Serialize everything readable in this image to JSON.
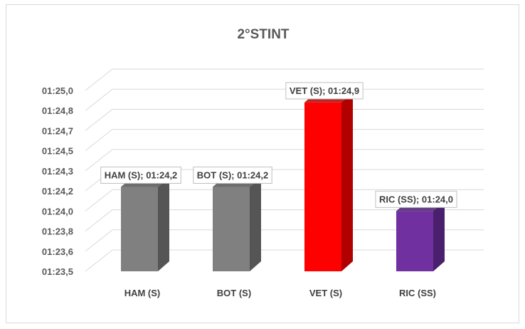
{
  "chart_data": {
    "type": "bar",
    "title": "2°STINT",
    "categories": [
      "HAM (S)",
      "BOT (S)",
      "VET (S)",
      "RIC (SS)"
    ],
    "values_seconds": [
      84.2,
      84.2,
      84.9,
      84.0
    ],
    "data_labels": [
      "HAM (S); 01:24,2",
      "BOT (S); 01:24,2",
      "VET (S); 01:24,9",
      "RIC (SS); 01:24,0"
    ],
    "colors": [
      "#808080",
      "#808080",
      "#ff0000",
      "#7030a0"
    ],
    "side_colors": [
      "#555555",
      "#555555",
      "#b00000",
      "#4a1f6e"
    ],
    "y_tick_labels": [
      "01:23,5",
      "01:23,6",
      "01:23,8",
      "01:24,0",
      "01:24,2",
      "01:24,3",
      "01:24,5",
      "01:24,7",
      "01:24,8",
      "01:25,0"
    ],
    "ylim_seconds": [
      83.5,
      85.0
    ],
    "xlabel": "",
    "ylabel": "",
    "grid": true,
    "legend": "none"
  }
}
